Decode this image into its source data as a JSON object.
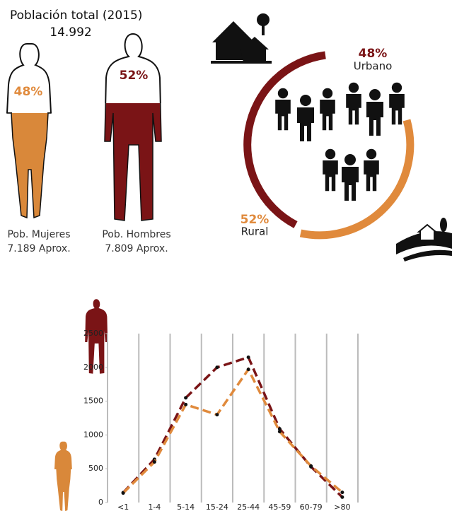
{
  "header": {
    "title": "Población total (2015)",
    "total": "14.992"
  },
  "women": {
    "percent": "48%",
    "label": "Pob. Mujeres",
    "count": "7.189 Aprox."
  },
  "men": {
    "percent": "52%",
    "label": "Pob. Hombres",
    "count": "7.809 Aprox."
  },
  "area": {
    "urban_percent": "48%",
    "urban_label": "Urbano",
    "rural_percent": "52%",
    "rural_label": "Rural"
  },
  "chart_data": {
    "type": "line",
    "categories": [
      "<1",
      "1-4",
      "5-14",
      "15-24",
      "25-44",
      "45-59",
      "60-79",
      ">80"
    ],
    "series": [
      {
        "color": "#7a1416",
        "values": [
          146,
          640,
          1550,
          2000,
          2150,
          1090,
          530,
          80
        ]
      },
      {
        "color": "#e08a3c",
        "values": [
          140,
          600,
          1450,
          1300,
          1970,
          1050,
          540,
          150
        ]
      }
    ],
    "ylim": [
      0,
      2500
    ],
    "yticks": [
      0,
      500,
      1000,
      1500,
      2000,
      2500
    ],
    "grid": true
  }
}
